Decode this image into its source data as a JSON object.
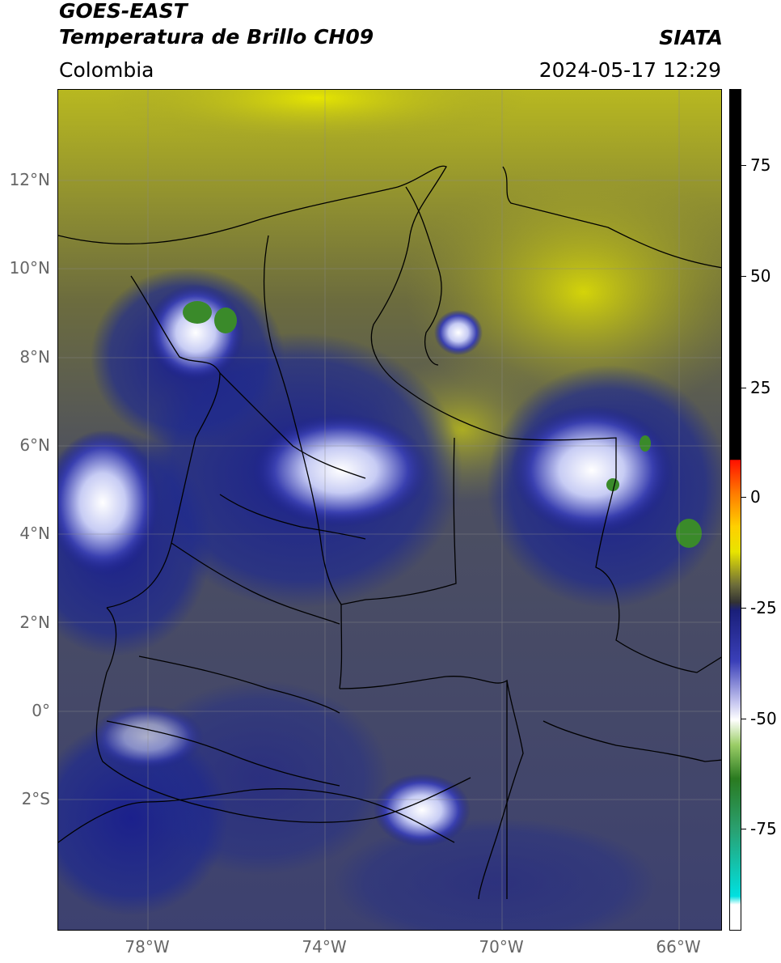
{
  "header": {
    "title_line1": "GOES-EAST",
    "title_line2": "Temperatura de Brillo CH09",
    "brand": "SIATA",
    "region": "Colombia",
    "datetime": "2024-05-17 12:29"
  },
  "map": {
    "lat_labels": [
      "12°N",
      "10°N",
      "8°N",
      "6°N",
      "4°N",
      "2°N",
      "0°",
      "2°S"
    ],
    "lon_labels": [
      "78°W",
      "74°W",
      "70°W",
      "66°W"
    ],
    "colors": {
      "warm_land": "#4a4f63",
      "olive": "#6e6e3e",
      "yellow": "#d8d800",
      "deep_blue": "#1b208c",
      "cloud_white": "#e9ecff",
      "cold_green": "#3a8a2a"
    }
  },
  "colorbar": {
    "ticks": [
      "75",
      "50",
      "25",
      "0",
      "-25",
      "-50",
      "-75"
    ]
  }
}
